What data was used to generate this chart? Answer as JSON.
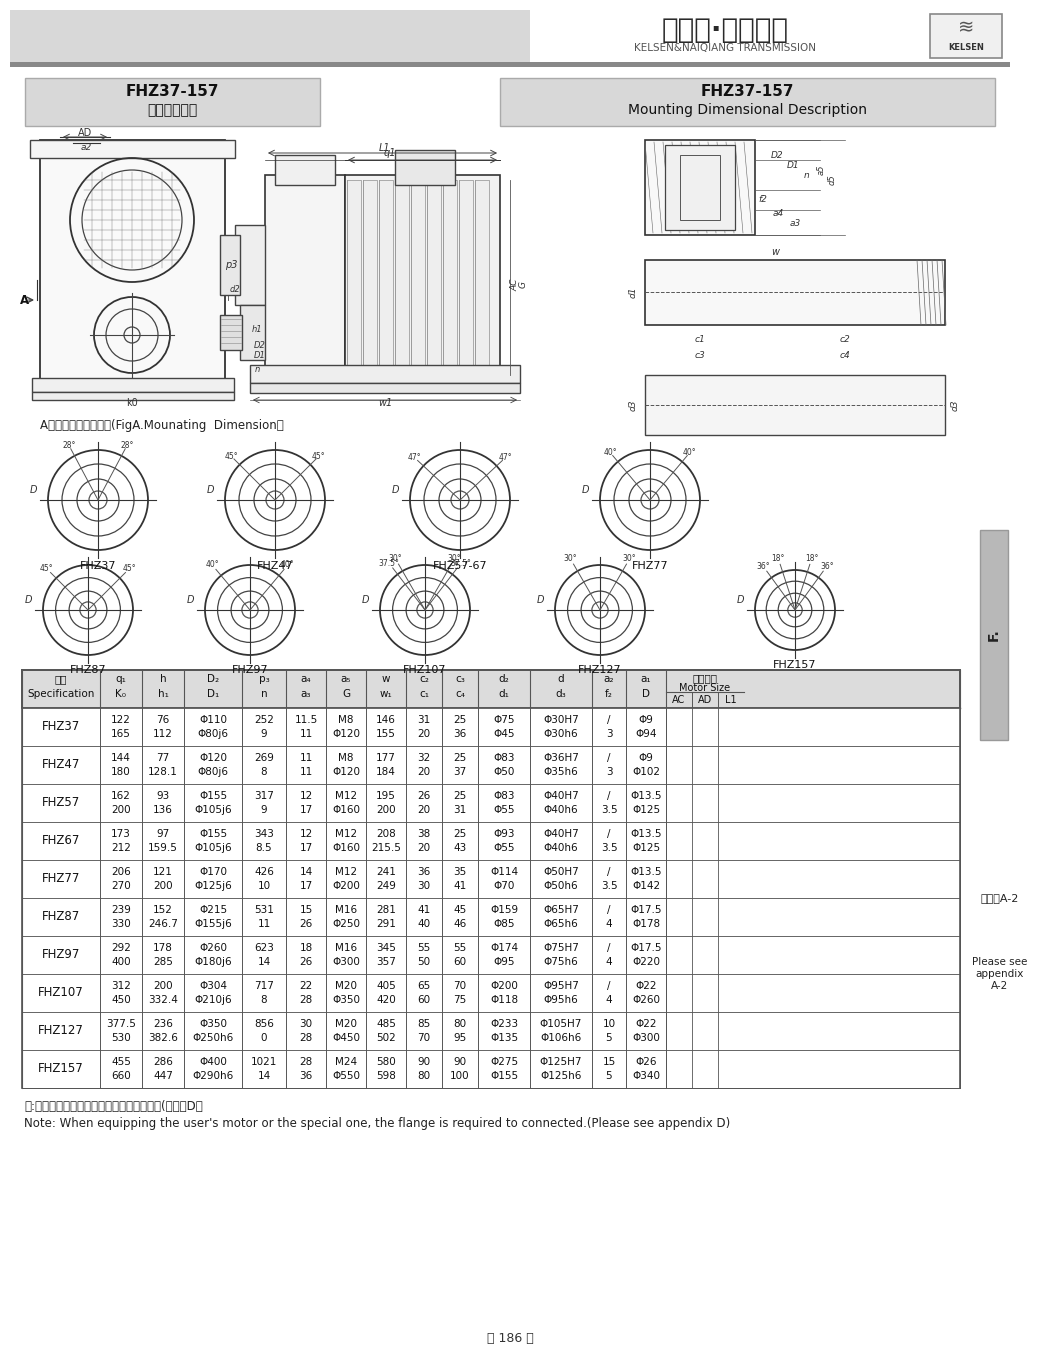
{
  "title_cn": "凯尔森·耐强传动",
  "title_en": "KELSEN&NAIQIANG TRANSMISSION",
  "brand": "KELSEN",
  "model_range": "FHZ37-157",
  "subtitle_cn": "安装结构尺寸",
  "subtitle_en": "Mounting Dimensional Description",
  "fig_caption": "A向法兰安装结构尺寸(FigA.Mounating  Dimension）",
  "note_cn": "注:电机需方配或配特殊电机时需加联接法兰(见附录D）",
  "note_en": "Note: When equipping the user's motor or the special one, the flange is required to connected.(Please see appendix D)",
  "page_num": "－ 186 －",
  "side_note1": "见附录A-2",
  "side_note2": "Please see\nappendix\nA-2",
  "diagrams_row1": [
    "FHZ37",
    "FHZ47",
    "FHZ57-67",
    "FHZ77"
  ],
  "diagrams_row2": [
    "FHZ87",
    "FHZ97",
    "FHZ107",
    "FHZ127",
    "FHZ157"
  ],
  "table_data": [
    [
      "FHZ37",
      "122\n165",
      "76\n112",
      "Φ110\nΦ80j6",
      "252\n9",
      "11.5\n11",
      "M8\nΦ120",
      "146\n155",
      "31\n20",
      "25\n36",
      "Φ75\nΦ45",
      "Φ30H7\nΦ30h6",
      "/\n3",
      "Φ9\nΦ94"
    ],
    [
      "FHZ47",
      "144\n180",
      "77\n128.1",
      "Φ120\nΦ80j6",
      "269\n8",
      "11\n11",
      "M8\nΦ120",
      "177\n184",
      "32\n20",
      "25\n37",
      "Φ83\nΦ50",
      "Φ36H7\nΦ35h6",
      "/\n3",
      "Φ9\nΦ102"
    ],
    [
      "FHZ57",
      "162\n200",
      "93\n136",
      "Φ155\nΦ105j6",
      "317\n9",
      "12\n17",
      "M12\nΦ160",
      "195\n200",
      "26\n20",
      "25\n31",
      "Φ83\nΦ55",
      "Φ40H7\nΦ40h6",
      "/\n3.5",
      "Φ13.5\nΦ125"
    ],
    [
      "FHZ67",
      "173\n212",
      "97\n159.5",
      "Φ155\nΦ105j6",
      "343\n8.5",
      "12\n17",
      "M12\nΦ160",
      "208\n215.5",
      "38\n20",
      "25\n43",
      "Φ93\nΦ55",
      "Φ40H7\nΦ40h6",
      "/\n3.5",
      "Φ13.5\nΦ125"
    ],
    [
      "FHZ77",
      "206\n270",
      "121\n200",
      "Φ170\nΦ125j6",
      "426\n10",
      "14\n17",
      "M12\nΦ200",
      "241\n249",
      "36\n30",
      "35\n41",
      "Φ114\nΦ70",
      "Φ50H7\nΦ50h6",
      "/\n3.5",
      "Φ13.5\nΦ142"
    ],
    [
      "FHZ87",
      "239\n330",
      "152\n246.7",
      "Φ215\nΦ155j6",
      "531\n11",
      "15\n26",
      "M16\nΦ250",
      "281\n291",
      "41\n40",
      "45\n46",
      "Φ159\nΦ85",
      "Φ65H7\nΦ65h6",
      "/\n4",
      "Φ17.5\nΦ178"
    ],
    [
      "FHZ97",
      "292\n400",
      "178\n285",
      "Φ260\nΦ180j6",
      "623\n14",
      "18\n26",
      "M16\nΦ300",
      "345\n357",
      "55\n50",
      "55\n60",
      "Φ174\nΦ95",
      "Φ75H7\nΦ75h6",
      "/\n4",
      "Φ17.5\nΦ220"
    ],
    [
      "FHZ107",
      "312\n450",
      "200\n332.4",
      "Φ304\nΦ210j6",
      "717\n8",
      "22\n28",
      "M20\nΦ350",
      "405\n420",
      "65\n60",
      "70\n75",
      "Φ200\nΦ118",
      "Φ95H7\nΦ95h6",
      "/\n4",
      "Φ22\nΦ260"
    ],
    [
      "FHZ127",
      "377.5\n530",
      "236\n382.6",
      "Φ350\nΦ250h6",
      "856\n0",
      "30\n28",
      "M20\nΦ450",
      "485\n502",
      "85\n70",
      "80\n95",
      "Φ233\nΦ135",
      "Φ105H7\nΦ106h6",
      "10\n5",
      "Φ22\nΦ300"
    ],
    [
      "FHZ157",
      "455\n660",
      "286\n447",
      "Φ400\nΦ290h6",
      "1021\n14",
      "28\n36",
      "M24\nΦ550",
      "580\n598",
      "90\n80",
      "90\n100",
      "Φ275\nΦ155",
      "Φ125H7\nΦ125h6",
      "15\n5",
      "Φ26\nΦ340"
    ]
  ]
}
